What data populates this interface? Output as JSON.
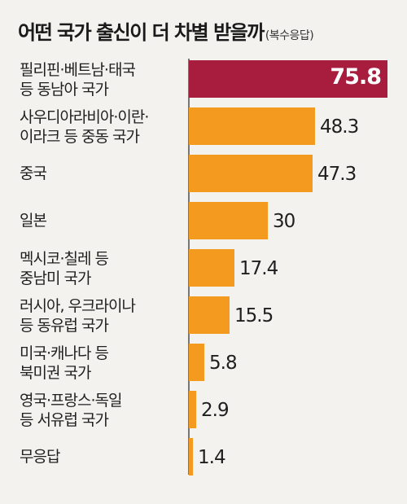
{
  "title": "어떤 국가 출신이 더 차별 받을까",
  "subtitle": "(복수응답)",
  "colors": {
    "highlight": "#a81c3e",
    "bar": "#f39a1f",
    "axis": "#777777"
  },
  "chart_data": {
    "type": "bar",
    "orientation": "horizontal",
    "categories": [
      [
        "필리핀·베트남·태국",
        "등 동남아 국가"
      ],
      [
        "사우디아라비아·이란·",
        "이라크 등 중동 국가"
      ],
      [
        "중국"
      ],
      [
        "일본"
      ],
      [
        "멕시코·칠레 등",
        "중남미 국가"
      ],
      [
        "러시아, 우크라이나",
        "등 동유럽 국가"
      ],
      [
        "미국·캐나다 등",
        "북미권 국가"
      ],
      [
        "영국·프랑스·독일",
        "등 서유럽 국가"
      ],
      [
        "무응답"
      ]
    ],
    "values": [
      75.8,
      48.3,
      47.3,
      30,
      17.4,
      15.5,
      5.8,
      2.9,
      1.4
    ],
    "value_labels": [
      "75.8",
      "48.3",
      "47.3",
      "30",
      "17.4",
      "15.5",
      "5.8",
      "2.9",
      "1.4"
    ],
    "highlight_index": 0,
    "xlim": [
      0,
      75.8
    ]
  }
}
